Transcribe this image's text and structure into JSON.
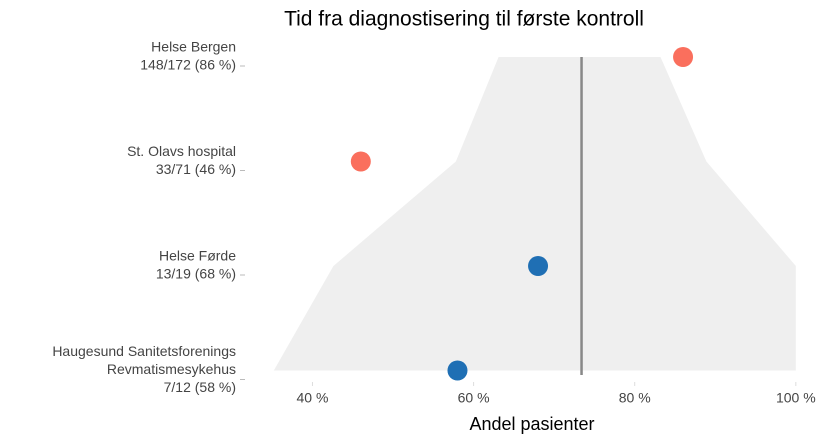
{
  "chart_data": {
    "type": "funnel-dot",
    "title": "Tid fra diagnostisering til første kontroll",
    "x_label": "Andel pasienter",
    "categories": [
      [
        "Helse Bergen",
        "148/172 (86 %)"
      ],
      [
        "St. Olavs hospital",
        "33/71 (46 %)"
      ],
      [
        "Helse Førde",
        "13/19 (68 %)"
      ],
      [
        "Haugesund Sanitetsforenings",
        "Revmatismesykehus",
        "7/12 (58 %)"
      ]
    ],
    "values": [
      86,
      46,
      68,
      58
    ],
    "colors": [
      "#fa6f5d",
      "#fa6f5d",
      "#1f6fb4",
      "#1f6fb4"
    ],
    "funnel_lower": [
      63.1,
      57.8,
      42.6,
      35.2
    ],
    "funnel_upper": [
      83.2,
      88.9,
      100,
      100
    ],
    "funnel_color": "#efefef",
    "target": 73.4,
    "xlim": [
      31.5,
      103
    ],
    "xticks": [
      {
        "value": 40,
        "label": "40 %"
      },
      {
        "value": 60,
        "label": "60 %"
      },
      {
        "value": 80,
        "label": "80 %"
      },
      {
        "value": 100,
        "label": "100 %"
      }
    ]
  }
}
